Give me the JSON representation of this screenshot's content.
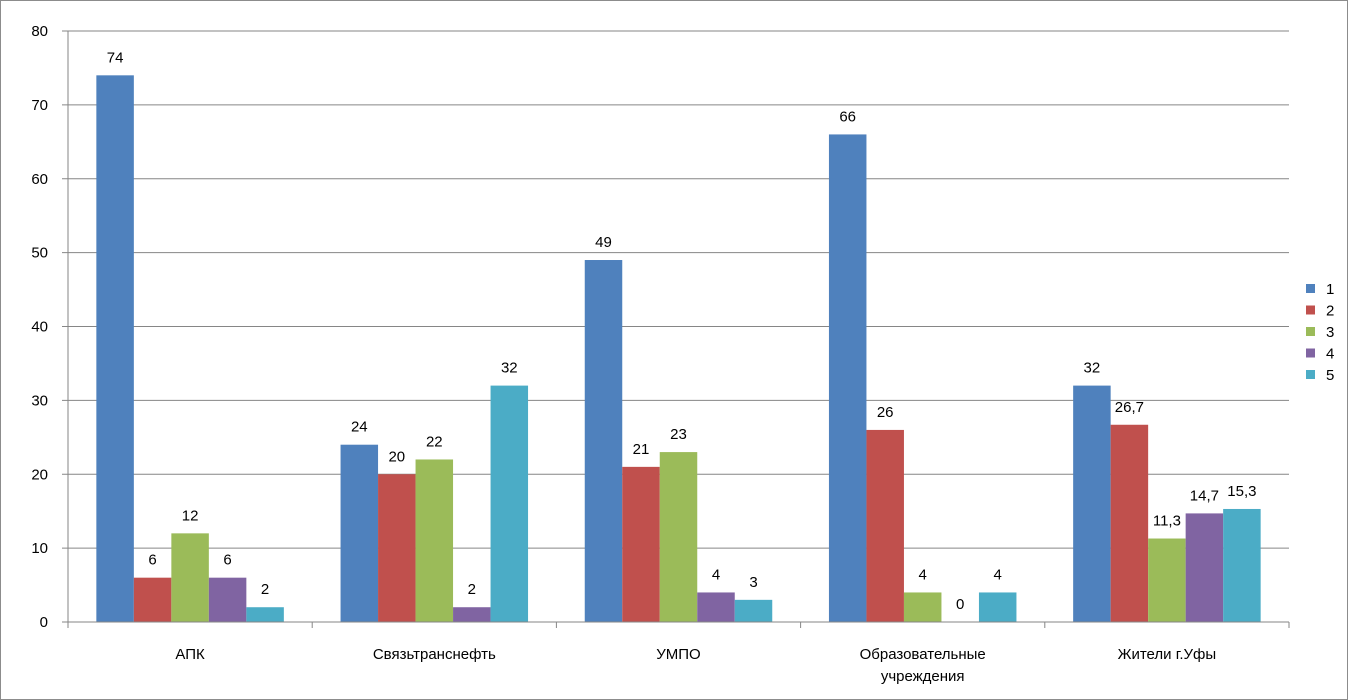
{
  "chart_data": {
    "type": "bar",
    "title": "",
    "xlabel": "",
    "ylabel": "",
    "ylim": [
      0,
      80
    ],
    "ytick_step": 10,
    "grid": true,
    "legend_position": "right",
    "categories": [
      "АПК",
      "Связьтранснефть",
      "УМПО",
      "Образовательные учреждения",
      "Жители г.Уфы"
    ],
    "category_lines": [
      [
        "АПК"
      ],
      [
        "Связьтранснефть"
      ],
      [
        "УМПО"
      ],
      [
        "Образовательные",
        "учреждения"
      ],
      [
        "Жители г.Уфы"
      ]
    ],
    "series": [
      {
        "name": "1",
        "color": "#4F81BD",
        "values": [
          74,
          24,
          49,
          66,
          32
        ],
        "labels": [
          "74",
          "24",
          "49",
          "66",
          "32"
        ]
      },
      {
        "name": "2",
        "color": "#C0504D",
        "values": [
          6,
          20,
          21,
          26,
          26.7
        ],
        "labels": [
          "6",
          "20",
          "21",
          "26",
          "26,7"
        ]
      },
      {
        "name": "3",
        "color": "#9BBB59",
        "values": [
          12,
          22,
          23,
          4,
          11.3
        ],
        "labels": [
          "12",
          "22",
          "23",
          "4",
          "11,3"
        ]
      },
      {
        "name": "4",
        "color": "#8064A2",
        "values": [
          6,
          2,
          4,
          0,
          14.7
        ],
        "labels": [
          "6",
          "2",
          "4",
          "0",
          "14,7"
        ]
      },
      {
        "name": "5",
        "color": "#4BACC6",
        "values": [
          2,
          32,
          3,
          4,
          15.3
        ],
        "labels": [
          "2",
          "32",
          "3",
          "4",
          "15,3"
        ]
      }
    ]
  }
}
